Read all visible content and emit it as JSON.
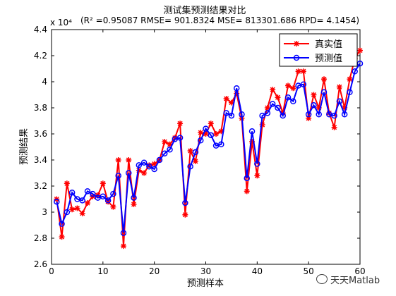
{
  "chart_data": {
    "type": "line",
    "title": "测试集预测结果对比",
    "subtitle": "(R² =0.95087 RMSE= 901.8324 MSE= 813301.686 RPD= 4.1454)",
    "xlabel": "预测样本",
    "ylabel": "预测结果",
    "y_exponent_label": "x 10⁴",
    "xlim": [
      0,
      60
    ],
    "ylim": [
      2.6,
      4.4
    ],
    "x_ticks": [
      0,
      10,
      20,
      30,
      40,
      50,
      60
    ],
    "y_ticks": [
      2.6,
      2.8,
      3.0,
      3.2,
      3.4,
      3.6,
      3.8,
      4.0,
      4.2,
      4.4
    ],
    "legend_position": "top-right",
    "grid": false,
    "x": [
      1,
      2,
      3,
      4,
      5,
      6,
      7,
      8,
      9,
      10,
      11,
      12,
      13,
      14,
      15,
      16,
      17,
      18,
      19,
      20,
      21,
      22,
      23,
      24,
      25,
      26,
      27,
      28,
      29,
      30,
      31,
      32,
      33,
      34,
      35,
      36,
      37,
      38,
      39,
      40,
      41,
      42,
      43,
      44,
      45,
      46,
      47,
      48,
      49,
      50,
      51,
      52,
      53,
      54,
      55,
      56,
      57,
      58,
      59,
      60
    ],
    "series": [
      {
        "name": "真实值",
        "color": "#ff0000",
        "marker": "star",
        "values": [
          3.1,
          2.81,
          3.22,
          3.02,
          3.03,
          2.99,
          3.07,
          3.12,
          3.13,
          3.22,
          3.08,
          3.04,
          3.4,
          2.74,
          3.4,
          3.06,
          3.32,
          3.3,
          3.36,
          3.37,
          3.4,
          3.54,
          3.52,
          3.57,
          3.68,
          2.98,
          3.47,
          3.39,
          3.61,
          3.6,
          3.68,
          3.6,
          3.62,
          3.87,
          3.84,
          3.91,
          3.72,
          3.16,
          3.54,
          3.28,
          3.67,
          3.8,
          3.94,
          3.88,
          3.76,
          3.97,
          3.95,
          4.08,
          4.08,
          3.72,
          3.9,
          3.8,
          4.02,
          3.76,
          3.65,
          3.96,
          3.8,
          4.02,
          4.18,
          4.24
        ]
      },
      {
        "name": "预测值",
        "color": "#0000ff",
        "marker": "circle",
        "values": [
          3.08,
          2.91,
          3.0,
          3.15,
          3.1,
          3.09,
          3.16,
          3.14,
          3.11,
          3.12,
          3.09,
          3.14,
          3.28,
          2.84,
          3.3,
          3.11,
          3.36,
          3.38,
          3.35,
          3.33,
          3.4,
          3.45,
          3.48,
          3.56,
          3.57,
          3.07,
          3.35,
          3.46,
          3.55,
          3.64,
          3.59,
          3.51,
          3.52,
          3.76,
          3.74,
          3.95,
          3.75,
          3.26,
          3.62,
          3.37,
          3.74,
          3.76,
          3.83,
          3.8,
          3.74,
          3.88,
          3.85,
          3.97,
          3.98,
          3.75,
          3.82,
          3.75,
          3.92,
          3.75,
          3.74,
          3.85,
          3.75,
          3.92,
          4.08,
          4.14
        ]
      }
    ]
  },
  "watermark": {
    "text": "天天Matlab",
    "icon": "wechat-icon"
  }
}
